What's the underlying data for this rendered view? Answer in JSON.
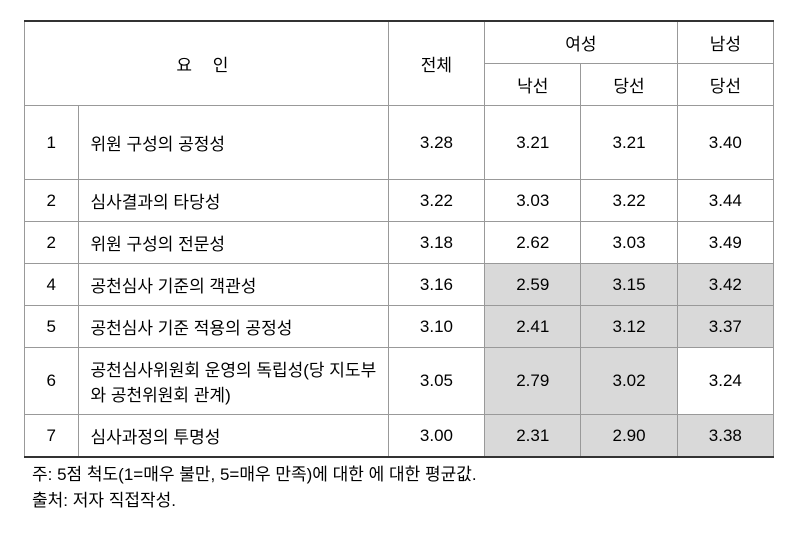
{
  "headers": {
    "factor": "요   인",
    "total": "전체",
    "female": "여성",
    "male": "남성",
    "lost": "낙선",
    "elected": "당선"
  },
  "rows": [
    {
      "num": "1",
      "label": "위원 구성의 공정성",
      "total": "3.28",
      "female_lost": "3.21",
      "female_elected": "3.21",
      "male_elected": "3.40",
      "shade_fl": false,
      "shade_fe": false,
      "shade_me": false,
      "tall": true
    },
    {
      "num": "2",
      "label": "심사결과의 타당성",
      "total": "3.22",
      "female_lost": "3.03",
      "female_elected": "3.22",
      "male_elected": "3.44",
      "shade_fl": false,
      "shade_fe": false,
      "shade_me": false,
      "tall": false
    },
    {
      "num": "2",
      "label": "위원 구성의 전문성",
      "total": "3.18",
      "female_lost": "2.62",
      "female_elected": "3.03",
      "male_elected": "3.49",
      "shade_fl": false,
      "shade_fe": false,
      "shade_me": false,
      "tall": false
    },
    {
      "num": "4",
      "label": "공천심사 기준의 객관성",
      "total": "3.16",
      "female_lost": "2.59",
      "female_elected": "3.15",
      "male_elected": "3.42",
      "shade_fl": true,
      "shade_fe": true,
      "shade_me": true,
      "tall": false
    },
    {
      "num": "5",
      "label": "공천심사 기준 적용의 공정성",
      "total": "3.10",
      "female_lost": "2.41",
      "female_elected": "3.12",
      "male_elected": "3.37",
      "shade_fl": true,
      "shade_fe": true,
      "shade_me": true,
      "tall": false
    },
    {
      "num": "6",
      "label": "공천심사위원회 운영의 독립성(당 지도부와 공천위원회 관계)",
      "total": "3.05",
      "female_lost": "2.79",
      "female_elected": "3.02",
      "male_elected": "3.24",
      "shade_fl": true,
      "shade_fe": true,
      "shade_me": false,
      "tall": false
    },
    {
      "num": "7",
      "label": "심사과정의 투명성",
      "total": "3.00",
      "female_lost": "2.31",
      "female_elected": "2.90",
      "male_elected": "3.38",
      "shade_fl": true,
      "shade_fe": true,
      "shade_me": true,
      "tall": false
    }
  ],
  "notes": {
    "line1": "주: 5점 척도(1=매우 불만, 5=매우 만족)에 대한 에 대한 평균값.",
    "line2": "출처: 저자 직접작성."
  },
  "colors": {
    "shaded_bg": "#d9d9d9",
    "border": "#999999",
    "bg": "#ffffff",
    "text": "#000000"
  }
}
